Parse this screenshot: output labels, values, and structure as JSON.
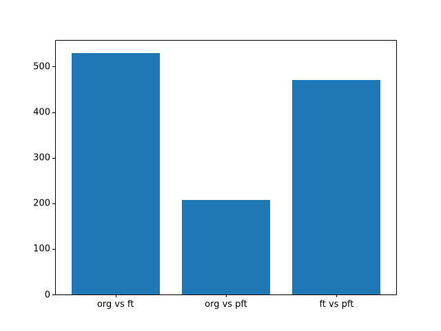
{
  "chart": {
    "bar_color": "#1f77b4",
    "spine_color": "#000000",
    "text_color": "#000000",
    "background_color": "#ffffff"
  },
  "chart_data": {
    "type": "bar",
    "categories": [
      "org vs ft",
      "org vs pft",
      "ft vs pft"
    ],
    "values": [
      530,
      208,
      470
    ],
    "title": "",
    "xlabel": "",
    "ylabel": "",
    "ylim": [
      0,
      556.5
    ],
    "yticks": [
      0,
      100,
      200,
      300,
      400,
      500
    ],
    "grid": false,
    "legend_position": "none"
  }
}
